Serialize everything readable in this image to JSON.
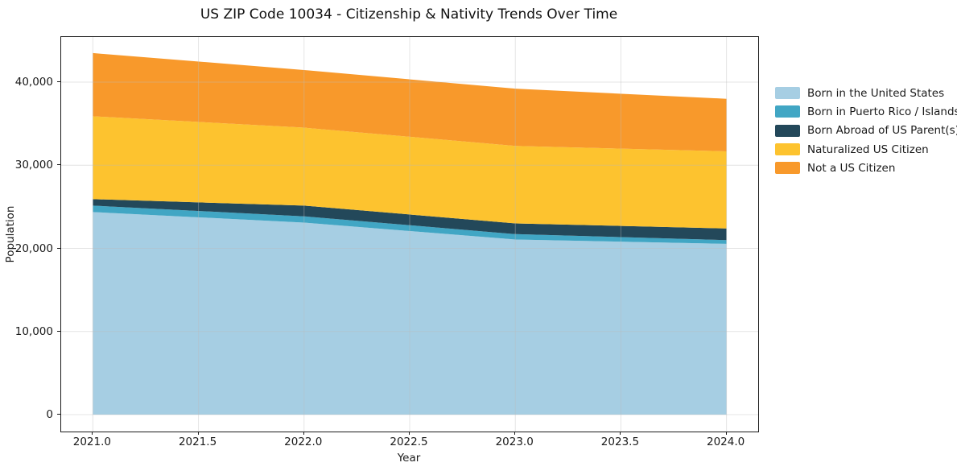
{
  "chart_data": {
    "type": "area",
    "stacked": true,
    "title": "US ZIP Code 10034 - Citizenship & Nativity Trends Over Time",
    "xlabel": "Year",
    "ylabel": "Population",
    "x": [
      2021,
      2022,
      2023,
      2024
    ],
    "series": [
      {
        "name": "Born in the United States",
        "color": "#A6CEE3",
        "values": [
          24370,
          23110,
          21070,
          20550
        ]
      },
      {
        "name": "Born in Puerto Rico / Islands",
        "color": "#41A6C4",
        "values": [
          780,
          750,
          650,
          450
        ]
      },
      {
        "name": "Born Abroad of US Parent(s)",
        "color": "#23485A",
        "values": [
          780,
          1290,
          1290,
          1400
        ]
      },
      {
        "name": "Naturalized US Citizen",
        "color": "#FDC32F",
        "values": [
          9970,
          9380,
          9320,
          9280
        ]
      },
      {
        "name": "Not a US Citizen",
        "color": "#F8992B",
        "values": [
          7600,
          6930,
          6890,
          6320
        ]
      }
    ],
    "stack_totals": [
      43500,
      41460,
      39220,
      38000
    ],
    "xlim": [
      2020.85,
      2024.15
    ],
    "ylim": [
      -2030,
      45430
    ],
    "x_ticks": [
      {
        "v": 2021.0,
        "label": "2021.0"
      },
      {
        "v": 2021.5,
        "label": "2021.5"
      },
      {
        "v": 2022.0,
        "label": "2022.0"
      },
      {
        "v": 2022.5,
        "label": "2022.5"
      },
      {
        "v": 2023.0,
        "label": "2023.0"
      },
      {
        "v": 2023.5,
        "label": "2023.5"
      },
      {
        "v": 2024.0,
        "label": "2024.0"
      }
    ],
    "y_ticks": [
      {
        "v": 0,
        "label": "0"
      },
      {
        "v": 10000,
        "label": "10,000"
      },
      {
        "v": 20000,
        "label": "20,000"
      },
      {
        "v": 30000,
        "label": "30,000"
      },
      {
        "v": 40000,
        "label": "40,000"
      }
    ],
    "grid": true,
    "grid_color": "#bbbbbb",
    "legend_position": "right-outside"
  }
}
